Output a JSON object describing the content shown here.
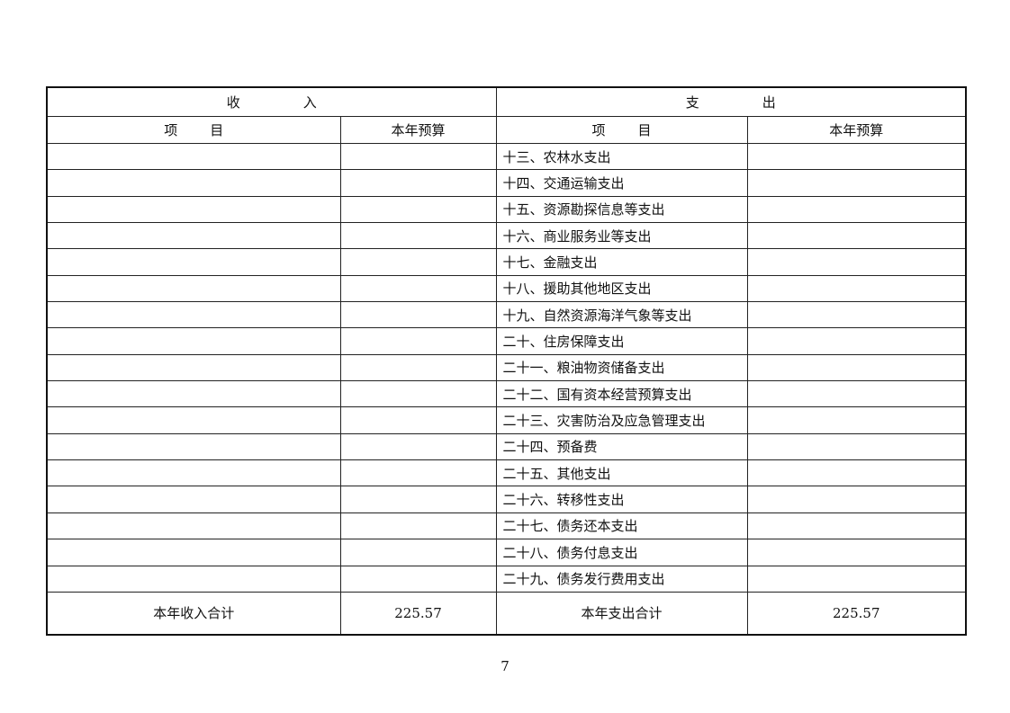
{
  "header": {
    "income": [
      "收",
      "入"
    ],
    "expense": [
      "支",
      "出"
    ]
  },
  "subheader": {
    "item": [
      "项",
      "目"
    ],
    "budget": "本年预算"
  },
  "expense_items": [
    "十三、农林水支出",
    "十四、交通运输支出",
    "十五、资源勘探信息等支出",
    "十六、商业服务业等支出",
    "十七、金融支出",
    "十八、援助其他地区支出",
    "十九、自然资源海洋气象等支出",
    "二十、住房保障支出",
    "二十一、粮油物资储备支出",
    "二十二、国有资本经营预算支出",
    "二十三、灾害防治及应急管理支出",
    "二十四、预备费",
    "二十五、其他支出",
    "二十六、转移性支出",
    "二十七、债务还本支出",
    "二十八、债务付息支出",
    "二十九、债务发行费用支出"
  ],
  "totals": {
    "income_label": "本年收入合计",
    "income_value": "225.57",
    "expense_label": "本年支出合计",
    "expense_value": "225.57"
  },
  "page_number": "7"
}
